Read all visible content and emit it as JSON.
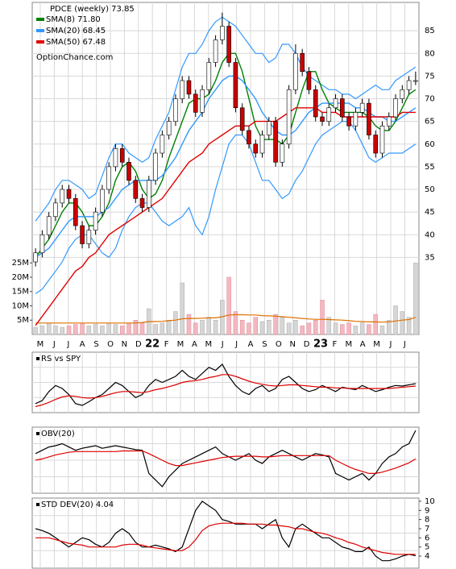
{
  "chart_data": [
    {
      "type": "candlestick",
      "title": "PDCE (weekly) 73.85",
      "watermark": "OptionChance.com",
      "months": [
        "M",
        "J",
        "J",
        "A",
        "S",
        "O",
        "N",
        "D",
        "22",
        "F",
        "M",
        "A",
        "M",
        "J",
        "J",
        "A",
        "S",
        "O",
        "N",
        "D",
        "23",
        "F",
        "M",
        "A",
        "M",
        "J",
        "J"
      ],
      "ylim": [
        18,
        90
      ],
      "yticks": [
        35,
        40,
        45,
        50,
        55,
        60,
        65,
        70,
        75,
        80,
        85
      ],
      "grid": true,
      "up_color": "#ffffff",
      "down_color": "#cc0000",
      "open": [
        34,
        36,
        40,
        44,
        47,
        50,
        48,
        42,
        38,
        41,
        45,
        50,
        55,
        59,
        56,
        52,
        48,
        46,
        52,
        58,
        62,
        65,
        70,
        74,
        71,
        67,
        72,
        78,
        83,
        86,
        78,
        68,
        63,
        60,
        58,
        62,
        65,
        56,
        60,
        72,
        80,
        76,
        72,
        66,
        65,
        68,
        70,
        66,
        64,
        67,
        69,
        62,
        58,
        64,
        66,
        70,
        72,
        74
      ],
      "high": [
        37,
        41,
        45,
        48,
        51,
        51,
        49,
        43,
        42,
        46,
        51,
        56,
        60,
        60,
        57,
        53,
        49,
        53,
        59,
        63,
        66,
        71,
        75,
        75,
        72,
        73,
        79,
        84,
        89,
        87,
        79,
        69,
        64,
        61,
        63,
        66,
        66,
        61,
        73,
        82,
        81,
        77,
        73,
        67,
        69,
        71,
        71,
        67,
        68,
        70,
        70,
        63,
        65,
        67,
        71,
        73,
        75,
        76
      ],
      "low": [
        33,
        35,
        39,
        43,
        46,
        47,
        41,
        37,
        37,
        40,
        44,
        49,
        54,
        55,
        51,
        47,
        45,
        45,
        51,
        57,
        61,
        64,
        69,
        70,
        66,
        66,
        71,
        77,
        82,
        77,
        67,
        62,
        59,
        57,
        57,
        61,
        55,
        55,
        59,
        71,
        75,
        71,
        65,
        64,
        64,
        67,
        65,
        63,
        63,
        66,
        61,
        57,
        57,
        63,
        65,
        69,
        71,
        73
      ],
      "close": [
        36,
        40,
        44,
        47,
        50,
        48,
        42,
        38,
        41,
        45,
        50,
        55,
        59,
        56,
        52,
        48,
        46,
        52,
        58,
        62,
        65,
        70,
        74,
        71,
        67,
        72,
        78,
        83,
        86,
        78,
        68,
        63,
        60,
        58,
        62,
        65,
        56,
        60,
        72,
        80,
        76,
        72,
        66,
        65,
        68,
        70,
        66,
        64,
        67,
        69,
        62,
        58,
        64,
        66,
        70,
        72,
        74,
        74
      ],
      "series": [
        {
          "name": "SMA(8) 71.80",
          "color": "#008000",
          "values": [
            35,
            37,
            39,
            42,
            45,
            47,
            47,
            45,
            42,
            42,
            44,
            47,
            52,
            55,
            56,
            54,
            50,
            48,
            49,
            52,
            57,
            61,
            65,
            69,
            70,
            70,
            71,
            74,
            78,
            80,
            80,
            76,
            70,
            64,
            61,
            61,
            61,
            60,
            62,
            67,
            72,
            76,
            76,
            72,
            69,
            68,
            67,
            67,
            67,
            67,
            66,
            64,
            63,
            63,
            65,
            68,
            71,
            72
          ]
        },
        {
          "name": "SMA(20) 68.45",
          "color": "#3399ff",
          "values": [
            35,
            36,
            37,
            39,
            41,
            43,
            44,
            44,
            44,
            44,
            45,
            46,
            48,
            50,
            51,
            52,
            52,
            52,
            52,
            53,
            55,
            57,
            60,
            63,
            65,
            67,
            70,
            72,
            74,
            75,
            75,
            74,
            72,
            70,
            67,
            65,
            63,
            62,
            62,
            63,
            65,
            67,
            68,
            69,
            69,
            69,
            69,
            69,
            68,
            68,
            67,
            66,
            66,
            65,
            65,
            66,
            67,
            68
          ]
        },
        {
          "name": "SMA(50) 67.48",
          "color": "#e00000",
          "values": [
            20,
            22,
            24,
            26,
            28,
            30,
            32,
            33,
            35,
            36,
            38,
            40,
            41,
            42,
            43,
            44,
            45,
            46,
            47,
            48,
            50,
            52,
            54,
            56,
            57,
            58,
            60,
            61,
            62,
            63,
            64,
            64,
            64,
            65,
            65,
            65,
            65,
            66,
            67,
            68,
            68,
            68,
            68,
            67,
            67,
            67,
            66,
            66,
            66,
            66,
            66,
            66,
            66,
            66,
            66,
            67,
            67,
            67
          ]
        }
      ],
      "bands": {
        "color": "#3399ff",
        "upper": [
          43,
          45,
          47,
          50,
          52,
          52,
          51,
          50,
          48,
          49,
          53,
          57,
          60,
          60,
          58,
          57,
          56,
          57,
          61,
          64,
          67,
          72,
          77,
          80,
          80,
          82,
          85,
          87,
          88,
          87,
          86,
          84,
          82,
          80,
          80,
          78,
          79,
          82,
          82,
          80,
          77,
          75,
          74,
          73,
          72,
          72,
          71,
          71,
          70,
          71,
          72,
          73,
          72,
          72,
          74,
          75,
          76,
          77
        ],
        "lower": [
          27,
          28,
          30,
          32,
          34,
          37,
          39,
          40,
          40,
          38,
          36,
          35,
          37,
          41,
          44,
          46,
          47,
          47,
          45,
          43,
          42,
          43,
          44,
          46,
          42,
          40,
          44,
          50,
          55,
          60,
          62,
          62,
          60,
          56,
          52,
          52,
          50,
          48,
          49,
          52,
          54,
          57,
          60,
          62,
          63,
          64,
          65,
          65,
          63,
          60,
          57,
          56,
          57,
          58,
          58,
          58,
          59,
          60
        ]
      },
      "volume": [
        2500000,
        3000000,
        4000000,
        3000000,
        2500000,
        3000000,
        3500000,
        4000000,
        3000000,
        3500000,
        3000000,
        4000000,
        3500000,
        3000000,
        4000000,
        5000000,
        4000000,
        9000000,
        3500000,
        4000000,
        5000000,
        8000000,
        18000000,
        7000000,
        4000000,
        5000000,
        6000000,
        5000000,
        12000000,
        20000000,
        8000000,
        5000000,
        4000000,
        6000000,
        4500000,
        5000000,
        7000000,
        6000000,
        4000000,
        5000000,
        3000000,
        4000000,
        5000000,
        12000000,
        6000000,
        4000000,
        3500000,
        4000000,
        3000000,
        4000000,
        3500000,
        7000000,
        3000000,
        5000000,
        10000000,
        8000000,
        6000000,
        25000000
      ],
      "volume_ma": {
        "color": "#e07000",
        "values": [
          4000000,
          4000000,
          4000000,
          4000000,
          4000000,
          4000000,
          4000000,
          4000000,
          4000000,
          4000000,
          4000000,
          4000000,
          4000000,
          4000000,
          4000000,
          4000000,
          4200000,
          4500000,
          4500000,
          4600000,
          4800000,
          5000000,
          5500000,
          5600000,
          5600000,
          5700000,
          5800000,
          5800000,
          6200000,
          6800000,
          6900000,
          6900000,
          6800000,
          6800000,
          6600000,
          6500000,
          6400000,
          6200000,
          6000000,
          5800000,
          5600000,
          5400000,
          5300000,
          5300000,
          5200000,
          5100000,
          5000000,
          4800000,
          4600000,
          4500000,
          4400000,
          4400000,
          4300000,
          4400000,
          4700000,
          5000000,
          5200000,
          6000000
        ]
      },
      "vlim": [
        0,
        114000000
      ],
      "vticks": [
        {
          "value": 5000000,
          "label": "5M"
        },
        {
          "value": 10000000,
          "label": "10M"
        },
        {
          "value": 15000000,
          "label": "15M"
        },
        {
          "value": 20000000,
          "label": "20M"
        },
        {
          "value": 25000000,
          "label": "25M"
        }
      ]
    },
    {
      "type": "line",
      "title": "RS vs SPY",
      "ylim": [
        0,
        100
      ],
      "series": [
        {
          "color": "#000000",
          "values": [
            15,
            20,
            35,
            45,
            40,
            30,
            15,
            12,
            18,
            25,
            30,
            40,
            50,
            45,
            35,
            25,
            30,
            45,
            55,
            50,
            55,
            60,
            70,
            60,
            55,
            65,
            75,
            70,
            80,
            60,
            45,
            35,
            30,
            40,
            45,
            35,
            40,
            55,
            60,
            50,
            40,
            35,
            38,
            45,
            40,
            35,
            42,
            40,
            38,
            45,
            40,
            35,
            38,
            42,
            45,
            44,
            46,
            48
          ]
        },
        {
          "color": "#dd0000",
          "values": [
            10,
            13,
            17,
            22,
            26,
            28,
            27,
            25,
            24,
            25,
            27,
            30,
            33,
            35,
            35,
            34,
            33,
            35,
            38,
            40,
            43,
            46,
            50,
            52,
            53,
            55,
            58,
            60,
            63,
            63,
            60,
            56,
            52,
            49,
            47,
            45,
            44,
            45,
            46,
            46,
            45,
            44,
            43,
            42,
            42,
            41,
            41,
            40,
            40,
            40,
            40,
            40,
            40,
            40,
            41,
            42,
            43,
            44
          ]
        }
      ]
    },
    {
      "type": "line",
      "title": "OBV(20)",
      "ylim": [
        0,
        100
      ],
      "series": [
        {
          "color": "#000000",
          "values": [
            60,
            65,
            70,
            72,
            75,
            70,
            65,
            68,
            70,
            72,
            68,
            70,
            72,
            70,
            68,
            66,
            65,
            30,
            20,
            10,
            25,
            35,
            45,
            50,
            55,
            60,
            65,
            70,
            60,
            55,
            50,
            55,
            60,
            50,
            45,
            55,
            60,
            65,
            60,
            55,
            50,
            55,
            60,
            58,
            55,
            30,
            25,
            20,
            25,
            30,
            20,
            30,
            45,
            55,
            60,
            70,
            75,
            95
          ]
        },
        {
          "color": "#dd0000",
          "values": [
            50,
            52,
            55,
            58,
            60,
            62,
            63,
            63,
            63,
            63,
            63,
            63,
            63,
            64,
            64,
            64,
            64,
            60,
            55,
            50,
            45,
            42,
            42,
            44,
            46,
            48,
            50,
            52,
            54,
            55,
            56,
            56,
            56,
            56,
            55,
            55,
            56,
            57,
            57,
            57,
            57,
            57,
            57,
            57,
            57,
            50,
            45,
            40,
            36,
            33,
            30,
            30,
            32,
            35,
            38,
            42,
            46,
            52
          ]
        }
      ]
    },
    {
      "type": "line",
      "title": "STD DEV(20) 4.04",
      "ylim": [
        2.68,
        10.35
      ],
      "yticks": [
        4,
        5,
        6,
        7,
        8,
        9,
        10
      ],
      "series": [
        {
          "color": "#000000",
          "values": [
            7,
            6.8,
            6.5,
            6,
            5.5,
            5,
            5.5,
            6,
            5.8,
            5.3,
            5,
            5.5,
            6.5,
            7,
            6.5,
            5.5,
            5,
            5,
            5.2,
            5,
            4.8,
            4.5,
            5,
            7,
            9,
            10,
            9.5,
            9,
            8,
            7.8,
            7.5,
            7.5,
            7.5,
            7.5,
            7,
            7.5,
            8,
            6,
            5,
            7,
            7.5,
            7,
            6.5,
            6,
            6,
            5.5,
            5,
            4.8,
            4.5,
            4.5,
            5,
            4,
            3.5,
            3.5,
            3.7,
            4,
            4.2,
            4.04
          ]
        },
        {
          "color": "#dd0000",
          "values": [
            6,
            6,
            6,
            5.8,
            5.6,
            5.4,
            5.3,
            5.2,
            5,
            5,
            5,
            5,
            5,
            5.2,
            5.3,
            5.3,
            5.2,
            5,
            4.9,
            4.8,
            4.7,
            4.6,
            4.6,
            5,
            5.8,
            6.8,
            7.3,
            7.5,
            7.6,
            7.6,
            7.6,
            7.6,
            7.5,
            7.5,
            7.5,
            7.4,
            7.4,
            7.3,
            7.2,
            7,
            7,
            6.8,
            6.6,
            6.5,
            6.3,
            6,
            5.8,
            5.5,
            5.3,
            5,
            4.8,
            4.6,
            4.4,
            4.3,
            4.2,
            4.2,
            4.2,
            4.2
          ]
        }
      ]
    }
  ]
}
